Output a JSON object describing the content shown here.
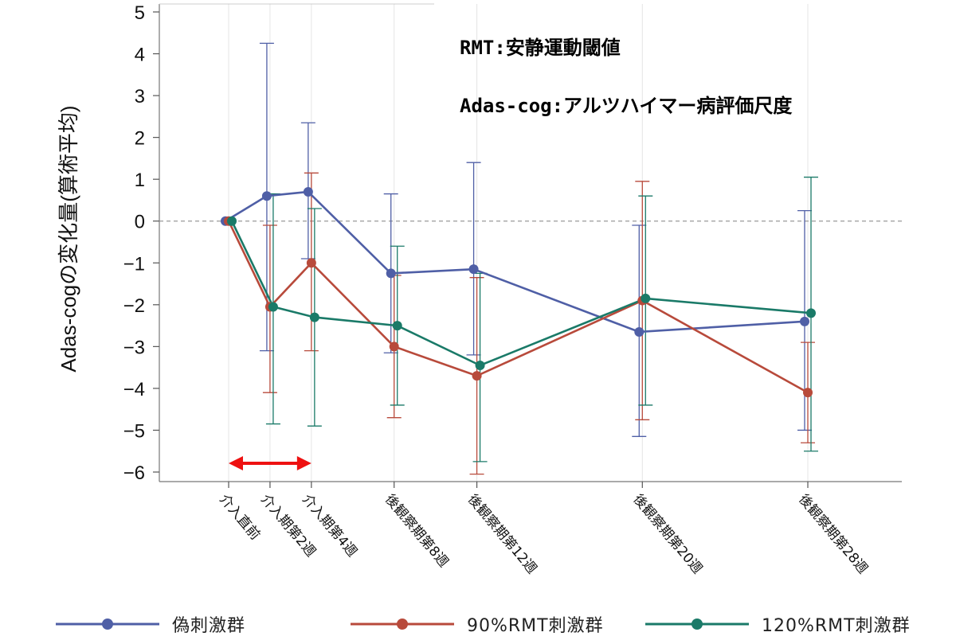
{
  "annotations": {
    "rmt_note": "RMT:安静運動閾値",
    "adas_note": "Adas-cog:アルツハイマー病評価尺度"
  },
  "colors": {
    "sham": "#4f5fa6",
    "rmt90": "#b84a3b",
    "rmt120": "#1a7a68",
    "arrow": "#ee1111"
  },
  "chart_data": {
    "type": "line",
    "ylabel": "Adas-cogの変化量(算術平均)",
    "ylim": [
      -6,
      5
    ],
    "yticks": [
      5,
      4,
      3,
      2,
      1,
      0,
      -1,
      -2,
      -3,
      -4,
      -5,
      -6
    ],
    "categories": [
      "介入直前",
      "介入期第2週",
      "介入期第4週",
      "後観察期第8週",
      "後観察期第12週",
      "後観察期第20週",
      "後観察期第28週"
    ],
    "x_weeks": [
      0,
      2,
      4,
      8,
      12,
      20,
      28
    ],
    "reference_line_y": 0,
    "intervention_arrow": {
      "from_week": 0,
      "to_week": 4
    },
    "legend_position": "bottom",
    "series": [
      {
        "name": "偽刺激群",
        "color_key": "sham",
        "values": [
          0,
          0.6,
          0.7,
          -1.25,
          -1.15,
          -2.65,
          -2.4
        ],
        "error_low": [
          0,
          -3.1,
          -0.9,
          -3.15,
          -3.2,
          -5.15,
          -5.0
        ],
        "error_high": [
          0,
          4.25,
          2.35,
          0.65,
          1.4,
          -0.1,
          0.25
        ]
      },
      {
        "name": "90%RMT刺激群",
        "color_key": "rmt90",
        "values": [
          0,
          -2.05,
          -1.0,
          -3.0,
          -3.7,
          -1.9,
          -4.1
        ],
        "error_low": [
          0,
          -4.1,
          -3.1,
          -4.7,
          -6.05,
          -4.75,
          -5.3
        ],
        "error_high": [
          0,
          -0.1,
          1.15,
          -1.3,
          -1.35,
          0.95,
          -2.9
        ]
      },
      {
        "name": "120%RMT刺激群",
        "color_key": "rmt120",
        "values": [
          0,
          -2.05,
          -2.3,
          -2.5,
          -3.45,
          -1.85,
          -2.2
        ],
        "error_low": [
          0,
          -4.85,
          -4.9,
          -4.4,
          -5.75,
          -4.4,
          -5.5
        ],
        "error_high": [
          0,
          0.65,
          0.3,
          -0.6,
          -1.25,
          0.6,
          1.05
        ]
      }
    ]
  }
}
